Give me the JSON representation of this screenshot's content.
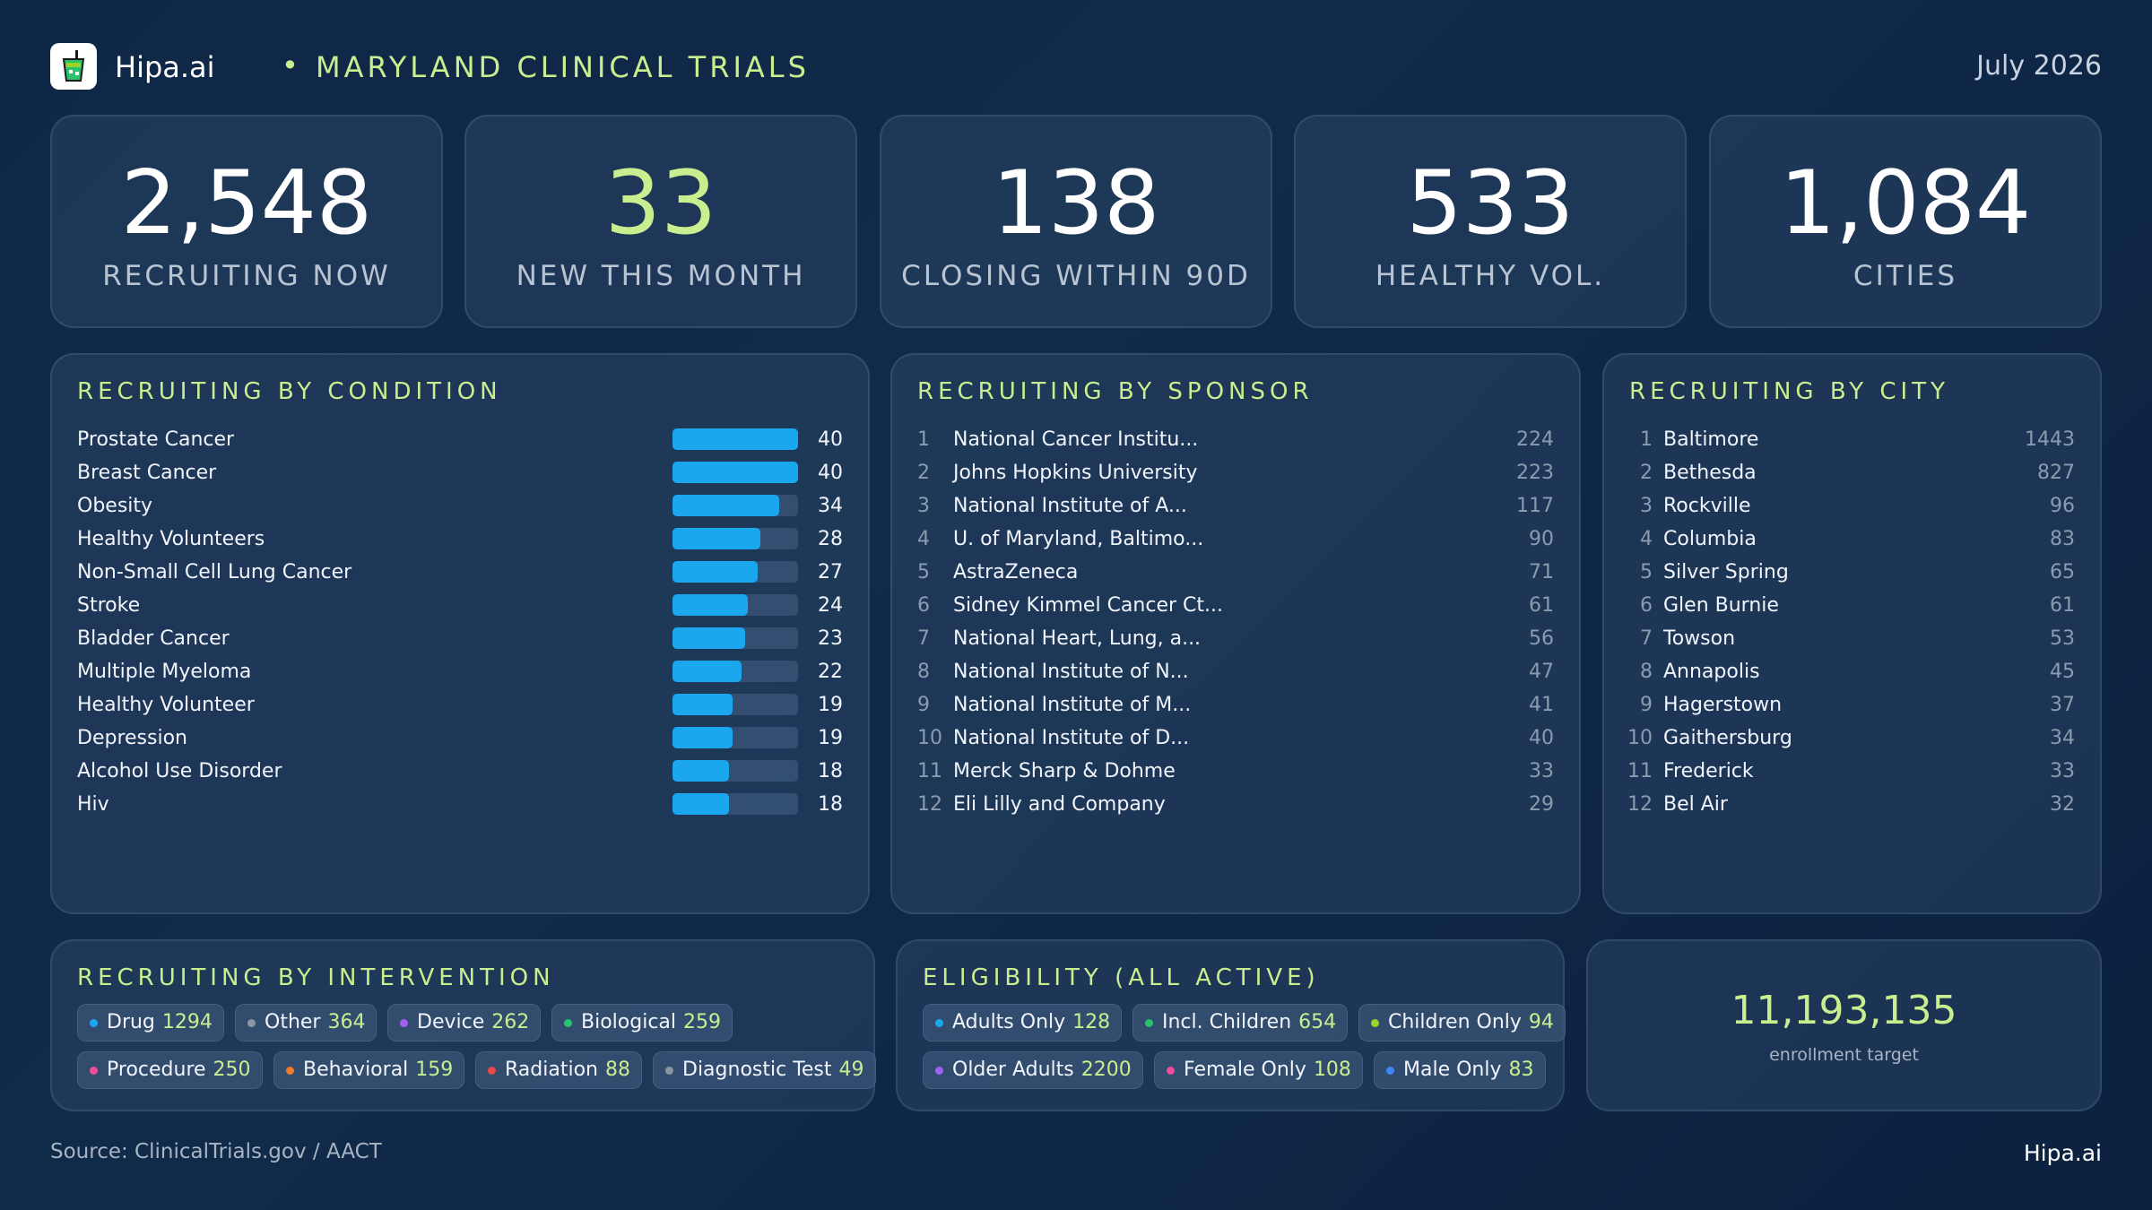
{
  "header": {
    "brand": "Hipa.ai",
    "separator": "•",
    "title": "MARYLAND CLINICAL TRIALS",
    "date": "July 2026"
  },
  "kpis": [
    {
      "value": "2,548",
      "label": "RECRUITING NOW"
    },
    {
      "value": "33",
      "label": "NEW THIS MONTH"
    },
    {
      "value": "138",
      "label": "CLOSING WITHIN 90D"
    },
    {
      "value": "533",
      "label": "HEALTHY VOL."
    },
    {
      "value": "1,084",
      "label": "CITIES"
    }
  ],
  "condition": {
    "title": "RECRUITING BY CONDITION",
    "max": 40,
    "items": [
      {
        "name": "Prostate Cancer",
        "value": 40
      },
      {
        "name": "Breast Cancer",
        "value": 40
      },
      {
        "name": "Obesity",
        "value": 34
      },
      {
        "name": "Healthy Volunteers",
        "value": 28
      },
      {
        "name": "Non-Small Cell Lung Cancer",
        "value": 27
      },
      {
        "name": "Stroke",
        "value": 24
      },
      {
        "name": "Bladder Cancer",
        "value": 23
      },
      {
        "name": "Multiple Myeloma",
        "value": 22
      },
      {
        "name": "Healthy Volunteer",
        "value": 19
      },
      {
        "name": "Depression",
        "value": 19
      },
      {
        "name": "Alcohol Use Disorder",
        "value": 18
      },
      {
        "name": "Hiv",
        "value": 18
      }
    ]
  },
  "sponsor": {
    "title": "RECRUITING BY SPONSOR",
    "items": [
      {
        "rank": "1",
        "name": "National Cancer Institu...",
        "value": "224"
      },
      {
        "rank": "2",
        "name": "Johns Hopkins University",
        "value": "223"
      },
      {
        "rank": "3",
        "name": "National Institute of A...",
        "value": "117"
      },
      {
        "rank": "4",
        "name": "U. of Maryland, Baltimo...",
        "value": "90"
      },
      {
        "rank": "5",
        "name": "AstraZeneca",
        "value": "71"
      },
      {
        "rank": "6",
        "name": "Sidney Kimmel Cancer Ct...",
        "value": "61"
      },
      {
        "rank": "7",
        "name": "National Heart, Lung, a...",
        "value": "56"
      },
      {
        "rank": "8",
        "name": "National Institute of N...",
        "value": "47"
      },
      {
        "rank": "9",
        "name": "National Institute of M...",
        "value": "41"
      },
      {
        "rank": "10",
        "name": "National Institute of D...",
        "value": "40"
      },
      {
        "rank": "11",
        "name": "Merck Sharp & Dohme",
        "value": "33"
      },
      {
        "rank": "12",
        "name": "Eli Lilly and Company",
        "value": "29"
      }
    ]
  },
  "city": {
    "title": "RECRUITING BY CITY",
    "items": [
      {
        "rank": "1",
        "name": "Baltimore",
        "value": "1443"
      },
      {
        "rank": "2",
        "name": "Bethesda",
        "value": "827"
      },
      {
        "rank": "3",
        "name": "Rockville",
        "value": "96"
      },
      {
        "rank": "4",
        "name": "Columbia",
        "value": "83"
      },
      {
        "rank": "5",
        "name": "Silver Spring",
        "value": "65"
      },
      {
        "rank": "6",
        "name": "Glen Burnie",
        "value": "61"
      },
      {
        "rank": "7",
        "name": "Towson",
        "value": "53"
      },
      {
        "rank": "8",
        "name": "Annapolis",
        "value": "45"
      },
      {
        "rank": "9",
        "name": "Hagerstown",
        "value": "37"
      },
      {
        "rank": "10",
        "name": "Gaithersburg",
        "value": "34"
      },
      {
        "rank": "11",
        "name": "Frederick",
        "value": "33"
      },
      {
        "rank": "12",
        "name": "Bel Air",
        "value": "32"
      }
    ]
  },
  "intervention": {
    "title": "RECRUITING BY INTERVENTION",
    "rows": [
      [
        {
          "label": "Drug",
          "value": "1294",
          "color": "#1ba7ee"
        },
        {
          "label": "Other",
          "value": "364",
          "color": "#8b95a3"
        },
        {
          "label": "Device",
          "value": "262",
          "color": "#a35ff0"
        },
        {
          "label": "Biological",
          "value": "259",
          "color": "#27c46b"
        }
      ],
      [
        {
          "label": "Procedure",
          "value": "250",
          "color": "#ef4f9a"
        },
        {
          "label": "Behavioral",
          "value": "159",
          "color": "#f07a2a"
        },
        {
          "label": "Radiation",
          "value": "88",
          "color": "#e84848"
        },
        {
          "label": "Diagnostic Test",
          "value": "49",
          "color": "#8b95a3"
        }
      ]
    ]
  },
  "eligibility": {
    "title": "ELIGIBILITY (ALL ACTIVE)",
    "rows": [
      [
        {
          "label": "Adults Only",
          "value": "128",
          "color": "#1ba7ee"
        },
        {
          "label": "Incl. Children",
          "value": "654",
          "color": "#27c46b"
        },
        {
          "label": "Children Only",
          "value": "94",
          "color": "#9bd32b"
        }
      ],
      [
        {
          "label": "Older Adults",
          "value": "2200",
          "color": "#a35ff0"
        },
        {
          "label": "Female Only",
          "value": "108",
          "color": "#ef4f9a"
        },
        {
          "label": "Male Only",
          "value": "83",
          "color": "#3f86f5"
        }
      ]
    ]
  },
  "enrollment": {
    "value": "11,193,135",
    "label": "enrollment target"
  },
  "footer": {
    "source": "Source: ClinicalTrials.gov /  AACT",
    "brand": "Hipa.ai"
  }
}
